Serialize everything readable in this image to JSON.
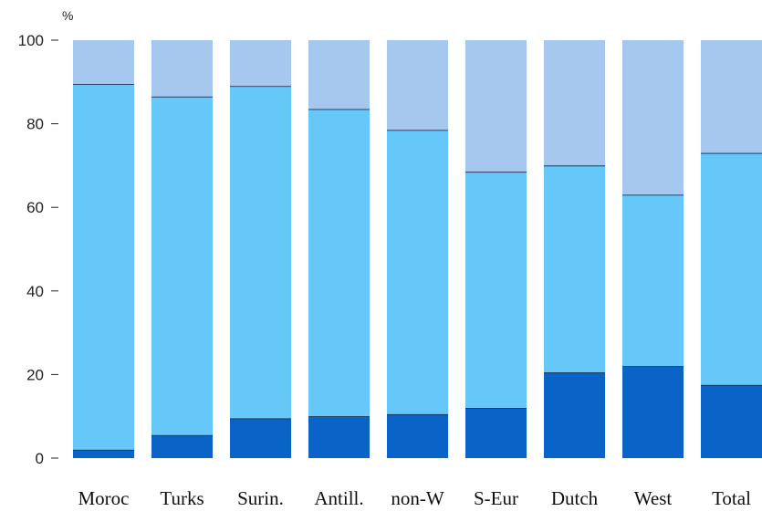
{
  "chart_data": {
    "type": "bar",
    "stacked": true,
    "unit": "%",
    "ylim": [
      0,
      100
    ],
    "yticks": [
      0,
      20,
      40,
      60,
      80,
      100
    ],
    "categories": [
      "Moroc",
      "Turks",
      "Surin.",
      "Antill.",
      "non-W",
      "S-Eur",
      "Dutch",
      "West",
      "Total"
    ],
    "series": [
      {
        "values": [
          2,
          5.5,
          9.5,
          10,
          10.5,
          12,
          20.5,
          22,
          17.5
        ]
      },
      {
        "values": [
          87.5,
          81,
          79.5,
          73.5,
          68,
          56.5,
          49.5,
          41,
          55.5
        ]
      },
      {
        "values": [
          10.5,
          13.5,
          11,
          16.5,
          21.5,
          31.5,
          30,
          37,
          27
        ]
      }
    ],
    "colors": [
      "#0a64c8",
      "#66c8f8",
      "#a6c8ee"
    ],
    "grid": false,
    "legend": "none"
  }
}
